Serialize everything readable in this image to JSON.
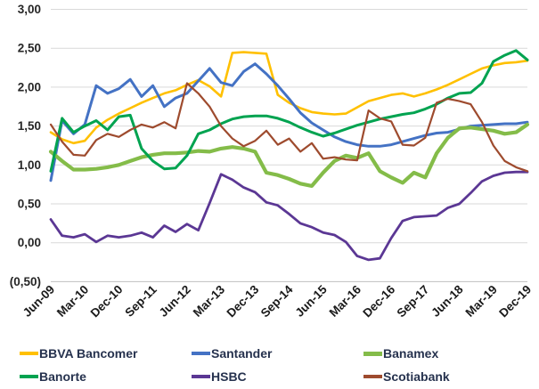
{
  "chart_data": {
    "type": "line",
    "title": "",
    "xlabel": "",
    "ylabel": "",
    "ylim": [
      -0.5,
      3.0
    ],
    "ytick_step": 0.5,
    "grid": true,
    "legend_position": "bottom",
    "decimal_style": "comma, negatives in parentheses",
    "ytick_labels": [
      "3,00",
      "2,50",
      "2,00",
      "1,50",
      "1,00",
      "0,50",
      "0,00",
      "(0,50)"
    ],
    "x_tick_interval": 3,
    "x_tick_labels_shown": [
      "Jun-09",
      "Mar-10",
      "Dec-10",
      "Sep-11",
      "Jun-12",
      "Mar-13",
      "Dec-13",
      "Sep-14",
      "Jun-15",
      "Mar-16",
      "Dec-16",
      "Sep-17",
      "Jun-18",
      "Mar-19",
      "Dec-19"
    ],
    "categories": [
      "Jun-09",
      "Sep-09",
      "Dec-09",
      "Mar-10",
      "Jun-10",
      "Sep-10",
      "Dec-10",
      "Mar-11",
      "Jun-11",
      "Sep-11",
      "Dec-11",
      "Mar-12",
      "Jun-12",
      "Sep-12",
      "Dec-12",
      "Mar-13",
      "Jun-13",
      "Sep-13",
      "Dec-13",
      "Mar-14",
      "Jun-14",
      "Sep-14",
      "Dec-14",
      "Mar-15",
      "Jun-15",
      "Sep-15",
      "Dec-15",
      "Mar-16",
      "Jun-16",
      "Sep-16",
      "Dec-16",
      "Mar-17",
      "Jun-17",
      "Sep-17",
      "Dec-17",
      "Mar-18",
      "Jun-18",
      "Sep-18",
      "Dec-18",
      "Mar-19",
      "Jun-19",
      "Sep-19",
      "Dec-19"
    ],
    "gridline_color": "#d9d9d9",
    "series": [
      {
        "name": "BBVA Bancomer",
        "color": "#FFC000",
        "values": [
          1.42,
          1.33,
          1.28,
          1.31,
          1.48,
          1.58,
          1.66,
          1.73,
          1.8,
          1.86,
          1.92,
          1.96,
          2.03,
          2.09,
          2.01,
          1.88,
          2.44,
          2.45,
          2.44,
          2.43,
          1.9,
          1.8,
          1.73,
          1.68,
          1.66,
          1.65,
          1.66,
          1.74,
          1.82,
          1.86,
          1.9,
          1.92,
          1.88,
          1.92,
          1.97,
          2.03,
          2.1,
          2.17,
          2.24,
          2.28,
          2.31,
          2.32,
          2.34
        ]
      },
      {
        "name": "Santander",
        "color": "#4472C4",
        "values": [
          0.8,
          1.57,
          1.4,
          1.52,
          2.02,
          1.92,
          1.98,
          2.1,
          1.88,
          2.02,
          1.75,
          1.86,
          1.92,
          2.08,
          2.24,
          2.06,
          2.02,
          2.2,
          2.3,
          2.17,
          2.02,
          1.85,
          1.67,
          1.54,
          1.45,
          1.36,
          1.3,
          1.26,
          1.24,
          1.24,
          1.26,
          1.3,
          1.34,
          1.38,
          1.41,
          1.42,
          1.46,
          1.5,
          1.51,
          1.52,
          1.53,
          1.53,
          1.55
        ]
      },
      {
        "name": "Banamex",
        "color": "#84BC49",
        "values": [
          1.17,
          1.05,
          0.94,
          0.94,
          0.95,
          0.97,
          1.0,
          1.05,
          1.1,
          1.13,
          1.15,
          1.15,
          1.16,
          1.18,
          1.17,
          1.21,
          1.23,
          1.21,
          1.17,
          0.9,
          0.87,
          0.82,
          0.76,
          0.73,
          0.9,
          1.05,
          1.12,
          1.09,
          1.15,
          0.92,
          0.84,
          0.77,
          0.9,
          0.84,
          1.15,
          1.35,
          1.47,
          1.48,
          1.46,
          1.44,
          1.4,
          1.42,
          1.52
        ]
      },
      {
        "name": "Banorte",
        "color": "#00A350",
        "values": [
          0.92,
          1.6,
          1.42,
          1.5,
          1.57,
          1.45,
          1.62,
          1.64,
          1.21,
          1.05,
          0.95,
          0.96,
          1.12,
          1.4,
          1.45,
          1.53,
          1.59,
          1.62,
          1.63,
          1.63,
          1.6,
          1.55,
          1.48,
          1.42,
          1.37,
          1.41,
          1.46,
          1.51,
          1.55,
          1.59,
          1.62,
          1.65,
          1.67,
          1.72,
          1.78,
          1.86,
          1.92,
          1.93,
          2.05,
          2.33,
          2.41,
          2.47,
          2.35
        ]
      },
      {
        "name": "HSBC",
        "color": "#5B3794",
        "values": [
          0.3,
          0.09,
          0.07,
          0.11,
          0.01,
          0.09,
          0.07,
          0.09,
          0.13,
          0.07,
          0.22,
          0.14,
          0.24,
          0.16,
          0.51,
          0.88,
          0.81,
          0.71,
          0.65,
          0.52,
          0.48,
          0.37,
          0.25,
          0.2,
          0.13,
          0.1,
          0.01,
          -0.17,
          -0.22,
          -0.2,
          0.06,
          0.28,
          0.33,
          0.34,
          0.35,
          0.45,
          0.5,
          0.64,
          0.79,
          0.86,
          0.9,
          0.91,
          0.91
        ]
      },
      {
        "name": "Scotiabank",
        "color": "#9E4B2E",
        "values": [
          1.52,
          1.3,
          1.13,
          1.12,
          1.32,
          1.4,
          1.36,
          1.45,
          1.52,
          1.48,
          1.55,
          1.47,
          2.05,
          1.92,
          1.75,
          1.5,
          1.34,
          1.24,
          1.31,
          1.44,
          1.26,
          1.34,
          1.17,
          1.28,
          1.08,
          1.1,
          1.07,
          1.06,
          1.7,
          1.6,
          1.56,
          1.26,
          1.25,
          1.35,
          1.8,
          1.85,
          1.82,
          1.78,
          1.55,
          1.25,
          1.05,
          0.97,
          0.92
        ]
      }
    ]
  },
  "legend": {
    "row1": [
      "BBVA Bancomer",
      "Santander",
      "Banamex"
    ],
    "row2": [
      "Banorte",
      "HSBC",
      "Scotiabank"
    ]
  }
}
